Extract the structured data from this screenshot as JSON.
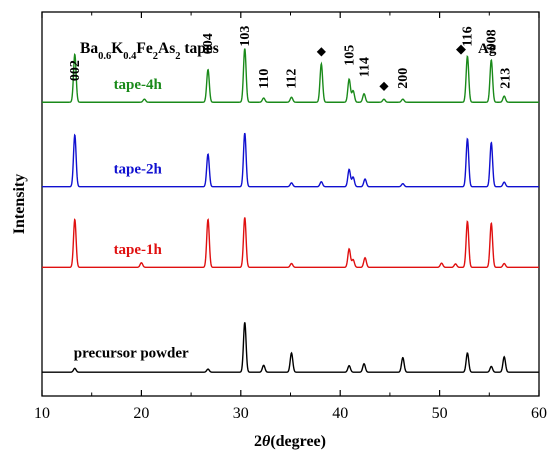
{
  "chart_data": {
    "type": "line",
    "title_parts": {
      "compound": [
        {
          "t": "Ba",
          "sub": false
        },
        {
          "t": "0.6",
          "sub": true
        },
        {
          "t": "K",
          "sub": false
        },
        {
          "t": "0.4",
          "sub": true
        },
        {
          "t": "Fe",
          "sub": false
        },
        {
          "t": "2",
          "sub": true
        },
        {
          "t": "As",
          "sub": false
        },
        {
          "t": "2",
          "sub": true
        },
        {
          "t": " tapes",
          "sub": false
        }
      ]
    },
    "legend_marker": "◆",
    "legend_label": "Ag",
    "xlabel_symbol": "2",
    "xlabel_theta": "θ",
    "xlabel_unit": "(degree)",
    "ylabel": "Intensity",
    "xlim": [
      10,
      60
    ],
    "xticks": [
      10,
      20,
      30,
      40,
      50,
      60
    ],
    "ylim": [
      0,
      100
    ],
    "colors": {
      "tape-4h": "#1a8a1a",
      "tape-2h": "#1010d0",
      "tape-1h": "#e01010",
      "precursor powder": "#000000"
    },
    "series": [
      {
        "name": "tape-4h",
        "baseline": 76.5,
        "peaks": [
          [
            13.3,
            12.5
          ],
          [
            20.3,
            0.8
          ],
          [
            26.7,
            8.5
          ],
          [
            30.4,
            14
          ],
          [
            32.3,
            1.1
          ],
          [
            35.1,
            1.3
          ],
          [
            38.1,
            10
          ],
          [
            40.9,
            6
          ],
          [
            41.3,
            3
          ],
          [
            42.4,
            2.2
          ],
          [
            44.4,
            0.8
          ],
          [
            46.3,
            0.8
          ],
          [
            52.8,
            12
          ],
          [
            55.2,
            11
          ],
          [
            56.5,
            1.6
          ]
        ]
      },
      {
        "name": "tape-2h",
        "baseline": 54.5,
        "peaks": [
          [
            13.3,
            13.5
          ],
          [
            26.7,
            8.5
          ],
          [
            30.4,
            14
          ],
          [
            35.1,
            1.0
          ],
          [
            38.1,
            1.3
          ],
          [
            40.9,
            4.5
          ],
          [
            41.3,
            2.5
          ],
          [
            42.5,
            2.0
          ],
          [
            46.3,
            0.8
          ],
          [
            52.8,
            12.5
          ],
          [
            55.2,
            11.5
          ],
          [
            56.5,
            1.2
          ]
        ]
      },
      {
        "name": "tape-1h",
        "baseline": 33.5,
        "peaks": [
          [
            13.3,
            12.5
          ],
          [
            20,
            1.2
          ],
          [
            26.7,
            12.5
          ],
          [
            30.4,
            13
          ],
          [
            35.1,
            1.0
          ],
          [
            40.9,
            4.8
          ],
          [
            41.3,
            2.0
          ],
          [
            42.5,
            2.5
          ],
          [
            50.2,
            1.1
          ],
          [
            51.6,
            0.9
          ],
          [
            52.8,
            12
          ],
          [
            55.2,
            11.5
          ],
          [
            56.5,
            1.0
          ]
        ]
      },
      {
        "name": "precursor powder",
        "baseline": 6.2,
        "peaks": [
          [
            13.3,
            1.0
          ],
          [
            26.7,
            0.8
          ],
          [
            30.4,
            13
          ],
          [
            32.3,
            1.8
          ],
          [
            35.1,
            5
          ],
          [
            40.9,
            1.7
          ],
          [
            42.4,
            2.2
          ],
          [
            46.3,
            3.8
          ],
          [
            52.8,
            5
          ],
          [
            55.2,
            1.5
          ],
          [
            56.5,
            4
          ]
        ]
      }
    ],
    "peak_labels": [
      {
        "text": "002",
        "x": 13.3,
        "y": 82
      },
      {
        "text": "004",
        "x": 26.7,
        "y": 89
      },
      {
        "text": "103",
        "x": 30.4,
        "y": 91
      },
      {
        "text": "110",
        "x": 32.3,
        "y": 80
      },
      {
        "text": "112",
        "x": 35.1,
        "y": 80
      },
      {
        "text": "105",
        "x": 40.9,
        "y": 86
      },
      {
        "text": "114",
        "x": 42.4,
        "y": 83
      },
      {
        "text": "200",
        "x": 46.3,
        "y": 80
      },
      {
        "text": "116",
        "x": 52.8,
        "y": 91
      },
      {
        "text": "008",
        "x": 55.2,
        "y": 90
      },
      {
        "text": "213",
        "x": 56.6,
        "y": 80
      }
    ],
    "ag_markers": [
      {
        "x": 38.1,
        "y": 89.5
      },
      {
        "x": 44.4,
        "y": 80.5
      }
    ],
    "series_labels": [
      {
        "text": "tape-4h",
        "x": 17.2,
        "y": 80
      },
      {
        "text": "tape-2h",
        "x": 17.2,
        "y": 58
      },
      {
        "text": "tape-1h",
        "x": 17.2,
        "y": 37
      },
      {
        "text": "precursor powder",
        "x": 13.2,
        "y": 10
      }
    ]
  }
}
